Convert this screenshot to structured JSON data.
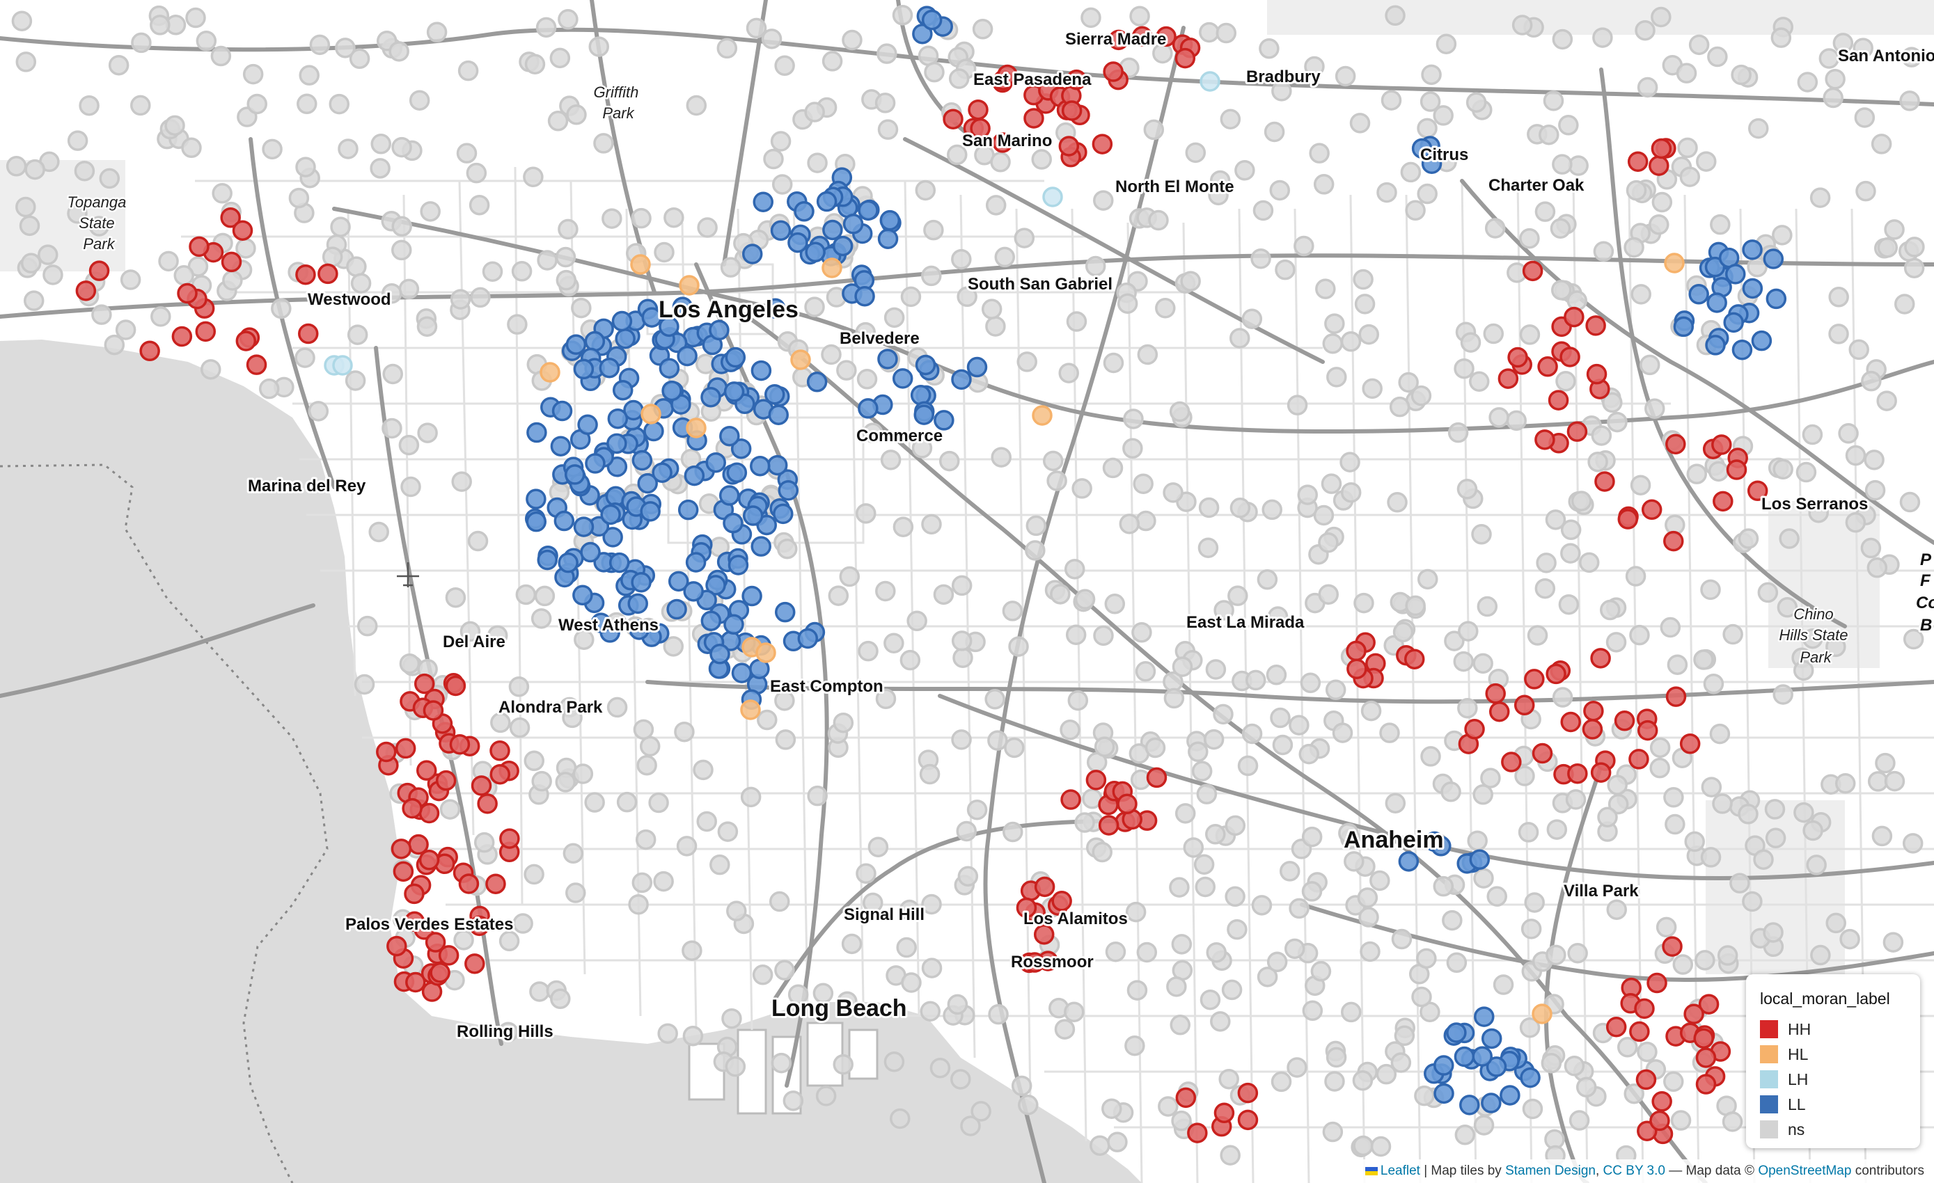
{
  "place_labels": [
    {
      "text": "Sierra Madre",
      "size": 24
    },
    {
      "text": "Bradbury",
      "size": 24
    },
    {
      "text": "San Antonio",
      "size": 24
    },
    {
      "text": "East Pasadena",
      "size": 24
    },
    {
      "text": "San Marino",
      "size": 24
    },
    {
      "text": "Citrus",
      "size": 24
    },
    {
      "text": "Charter Oak",
      "size": 24
    },
    {
      "text": "North El Monte",
      "size": 24
    },
    {
      "text": "Westwood",
      "size": 24
    },
    {
      "text": "South San Gabriel",
      "size": 24
    },
    {
      "text": "Los Angeles",
      "size": 34
    },
    {
      "text": "Belvedere",
      "size": 24
    },
    {
      "text": "Commerce",
      "size": 24
    },
    {
      "text": "Marina del Rey",
      "size": 24
    },
    {
      "text": "Los Serranos",
      "size": 24
    },
    {
      "text": "West Athens",
      "size": 24
    },
    {
      "text": "Del Aire",
      "size": 24
    },
    {
      "text": "East La Mirada",
      "size": 24
    },
    {
      "text": "East Compton",
      "size": 24
    },
    {
      "text": "Alondra Park",
      "size": 24
    },
    {
      "text": "Anaheim",
      "size": 34
    },
    {
      "text": "Villa Park",
      "size": 24
    },
    {
      "text": "Palos Verdes Estates",
      "size": 24
    },
    {
      "text": "Signal Hill",
      "size": 24
    },
    {
      "text": "Los Alamitos",
      "size": 24
    },
    {
      "text": "Rossmoor",
      "size": 24
    },
    {
      "text": "Long Beach",
      "size": 34
    },
    {
      "text": "Rolling Hills",
      "size": 24
    }
  ],
  "park_labels": [
    {
      "lines": [
        "Griffith",
        "Park"
      ]
    },
    {
      "lines": [
        "Topanga",
        "State",
        "Park"
      ]
    },
    {
      "lines": [
        "Chino",
        "Hills State",
        "Park"
      ]
    }
  ],
  "clipped_edge_label": {
    "lines": [
      "P",
      "F",
      "Co",
      "B"
    ]
  },
  "legend": {
    "title": "local_moran_label",
    "items": [
      {
        "label": "HH",
        "color": "#d62728"
      },
      {
        "label": "HL",
        "color": "#f6b26b"
      },
      {
        "label": "LH",
        "color": "#add8e6"
      },
      {
        "label": "LL",
        "color": "#3a6fb5"
      },
      {
        "label": "ns",
        "color": "#d3d3d3"
      }
    ]
  },
  "marker_colors": {
    "HH": {
      "fill": "#e06666",
      "stroke": "#c9211e"
    },
    "HL": {
      "fill": "#f6c28b",
      "stroke": "#f6b26b"
    },
    "LH": {
      "fill": "#cfe8f3",
      "stroke": "#add8e6"
    },
    "LL": {
      "fill": "#6a9bd8",
      "stroke": "#2f66b0"
    },
    "ns": {
      "fill": "#d9d9d9",
      "stroke": "#c8c8c8"
    }
  },
  "attribution": {
    "leaflet": "Leaflet",
    "sep1": " | Map tiles by ",
    "stamen": "Stamen Design",
    "sep2": ", ",
    "cc": "CC BY 3.0",
    "sep3": " — Map data © ",
    "osm": "OpenStreetMap",
    "suffix": " contributors"
  }
}
